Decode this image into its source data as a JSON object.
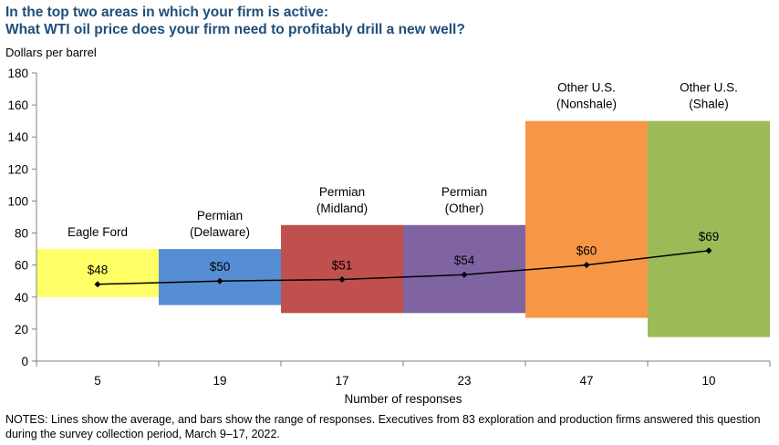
{
  "title_line1": "In the top two areas in which your firm is active:",
  "title_line2": "What WTI oil price does your firm need to profitably drill a new well?",
  "notes": "NOTES: Lines show the average, and bars show the range of responses. Executives from 83 exploration and production firms answered this question during the survey collection period, March 9–17, 2022.",
  "chart_data": {
    "type": "bar",
    "subtype": "floating-range-with-average-line",
    "ylabel": "Dollars per barrel",
    "xlabel": "Number of responses",
    "ylim": [
      0,
      180
    ],
    "yticks": [
      0,
      20,
      40,
      60,
      80,
      100,
      120,
      140,
      160,
      180
    ],
    "grid": false,
    "categories": [
      {
        "label_lines": [
          "Eagle Ford"
        ],
        "responses": "5",
        "low": 40,
        "high": 70,
        "average": 48,
        "average_label": "$48",
        "color": "#ffff66"
      },
      {
        "label_lines": [
          "Permian",
          "(Delaware)"
        ],
        "responses": "19",
        "low": 35,
        "high": 70,
        "average": 50,
        "average_label": "$50",
        "color": "#558ed5"
      },
      {
        "label_lines": [
          "Permian",
          "(Midland)"
        ],
        "responses": "17",
        "low": 30,
        "high": 85,
        "average": 51,
        "average_label": "$51",
        "color": "#c0504d"
      },
      {
        "label_lines": [
          "Permian",
          "(Other)"
        ],
        "responses": "23",
        "low": 30,
        "high": 85,
        "average": 54,
        "average_label": "$54",
        "color": "#8064a2"
      },
      {
        "label_lines": [
          "Other U.S.",
          "(Nonshale)"
        ],
        "responses": "47",
        "low": 27,
        "high": 150,
        "average": 60,
        "average_label": "$60",
        "color": "#f79646"
      },
      {
        "label_lines": [
          "Other U.S.",
          "(Shale)"
        ],
        "responses": "10",
        "low": 15,
        "high": 150,
        "average": 69,
        "average_label": "$69",
        "color": "#9bbb59"
      }
    ]
  }
}
